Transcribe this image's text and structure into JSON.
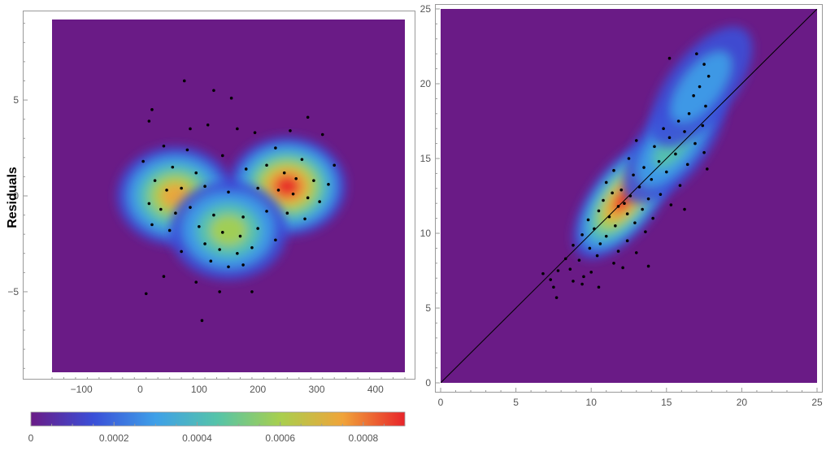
{
  "chart_data": [
    {
      "type": "scatter",
      "subtype": "density-heatmap-with-points",
      "title": "",
      "xlabel": "",
      "ylabel": "Residuals",
      "xlim": [
        -150,
        450
      ],
      "ylim": [
        -9.2,
        9.2
      ],
      "xticks": [
        -100,
        0,
        100,
        200,
        300,
        400
      ],
      "xtick_labels": [
        "−100",
        "0",
        "100",
        "200",
        "300",
        "400"
      ],
      "yticks": [
        -5,
        0,
        5
      ],
      "ytick_labels": [
        "−5",
        "0",
        "5"
      ],
      "grid": false,
      "density_clusters": [
        {
          "x": 250,
          "y": 0.5,
          "peak": 0.00088
        },
        {
          "x": 60,
          "y": 0.0,
          "peak": 0.00075
        },
        {
          "x": 150,
          "y": -1.8,
          "peak": 0.00055
        }
      ],
      "points": [
        [
          75,
          6.0
        ],
        [
          125,
          5.5
        ],
        [
          155,
          5.1
        ],
        [
          20,
          4.5
        ],
        [
          285,
          4.1
        ],
        [
          15,
          3.9
        ],
        [
          85,
          3.5
        ],
        [
          115,
          3.7
        ],
        [
          165,
          3.5
        ],
        [
          255,
          3.4
        ],
        [
          195,
          3.3
        ],
        [
          310,
          3.2
        ],
        [
          40,
          2.6
        ],
        [
          80,
          2.4
        ],
        [
          140,
          2.1
        ],
        [
          230,
          2.5
        ],
        [
          275,
          1.9
        ],
        [
          330,
          1.6
        ],
        [
          5,
          1.8
        ],
        [
          55,
          1.5
        ],
        [
          95,
          1.2
        ],
        [
          180,
          1.4
        ],
        [
          215,
          1.6
        ],
        [
          245,
          1.2
        ],
        [
          265,
          0.9
        ],
        [
          295,
          0.8
        ],
        [
          320,
          0.6
        ],
        [
          25,
          0.8
        ],
        [
          45,
          0.3
        ],
        [
          70,
          0.4
        ],
        [
          110,
          0.5
        ],
        [
          150,
          0.2
        ],
        [
          200,
          0.4
        ],
        [
          235,
          0.3
        ],
        [
          260,
          0.1
        ],
        [
          285,
          -0.1
        ],
        [
          305,
          -0.3
        ],
        [
          15,
          -0.4
        ],
        [
          35,
          -0.7
        ],
        [
          60,
          -0.9
        ],
        [
          85,
          -0.6
        ],
        [
          125,
          -1.0
        ],
        [
          175,
          -1.1
        ],
        [
          215,
          -0.8
        ],
        [
          250,
          -0.9
        ],
        [
          280,
          -1.2
        ],
        [
          20,
          -1.5
        ],
        [
          50,
          -1.8
        ],
        [
          100,
          -1.6
        ],
        [
          140,
          -1.9
        ],
        [
          170,
          -2.1
        ],
        [
          200,
          -1.7
        ],
        [
          230,
          -2.3
        ],
        [
          110,
          -2.5
        ],
        [
          135,
          -2.8
        ],
        [
          165,
          -3.0
        ],
        [
          190,
          -2.7
        ],
        [
          70,
          -2.9
        ],
        [
          120,
          -3.4
        ],
        [
          150,
          -3.7
        ],
        [
          175,
          -3.6
        ],
        [
          40,
          -4.2
        ],
        [
          95,
          -4.5
        ],
        [
          135,
          -5.0
        ],
        [
          190,
          -5.0
        ],
        [
          10,
          -5.1
        ],
        [
          105,
          -6.5
        ]
      ]
    },
    {
      "type": "scatter",
      "subtype": "density-heatmap-with-points",
      "title": "",
      "xlabel": "",
      "ylabel": "",
      "xlim": [
        0,
        25
      ],
      "ylim": [
        0,
        25
      ],
      "xticks": [
        0,
        5,
        10,
        15,
        20,
        25
      ],
      "xtick_labels": [
        "0",
        "5",
        "10",
        "15",
        "20",
        "25"
      ],
      "yticks": [
        0,
        5,
        10,
        15,
        20,
        25
      ],
      "ytick_labels": [
        "0",
        "5",
        "10",
        "15",
        "20",
        "25"
      ],
      "grid": false,
      "reference_line": {
        "from": [
          0,
          0
        ],
        "to": [
          25,
          25
        ]
      },
      "density_clusters": [
        {
          "x": 12.2,
          "y": 12.3,
          "peak": 0.0009
        },
        {
          "x": 15.5,
          "y": 16.0,
          "peak": 0.0005
        },
        {
          "x": 17.3,
          "y": 19.8,
          "peak": 0.00035
        }
      ],
      "points": [
        [
          15.2,
          21.7
        ],
        [
          17.0,
          22.0
        ],
        [
          17.5,
          21.3
        ],
        [
          17.8,
          20.5
        ],
        [
          17.2,
          19.8
        ],
        [
          16.8,
          19.2
        ],
        [
          17.6,
          18.5
        ],
        [
          16.5,
          18.0
        ],
        [
          15.8,
          17.5
        ],
        [
          17.4,
          17.2
        ],
        [
          14.8,
          17.0
        ],
        [
          16.2,
          16.8
        ],
        [
          15.2,
          16.4
        ],
        [
          13.0,
          16.2
        ],
        [
          16.9,
          16.0
        ],
        [
          14.2,
          15.8
        ],
        [
          15.6,
          15.3
        ],
        [
          17.5,
          15.4
        ],
        [
          12.5,
          15.0
        ],
        [
          14.5,
          14.8
        ],
        [
          16.4,
          14.6
        ],
        [
          13.5,
          14.4
        ],
        [
          11.5,
          14.2
        ],
        [
          15.0,
          14.1
        ],
        [
          17.7,
          14.3
        ],
        [
          12.8,
          13.9
        ],
        [
          14.0,
          13.6
        ],
        [
          11.0,
          13.4
        ],
        [
          15.9,
          13.2
        ],
        [
          13.2,
          13.1
        ],
        [
          12.0,
          12.9
        ],
        [
          11.4,
          12.7
        ],
        [
          14.6,
          12.6
        ],
        [
          12.6,
          12.5
        ],
        [
          13.8,
          12.3
        ],
        [
          10.8,
          12.2
        ],
        [
          12.2,
          12.0
        ],
        [
          11.8,
          11.8
        ],
        [
          15.3,
          11.9
        ],
        [
          13.4,
          11.6
        ],
        [
          10.5,
          11.5
        ],
        [
          12.4,
          11.3
        ],
        [
          11.2,
          11.1
        ],
        [
          14.1,
          11.0
        ],
        [
          16.2,
          11.6
        ],
        [
          9.8,
          10.9
        ],
        [
          12.9,
          10.7
        ],
        [
          11.6,
          10.5
        ],
        [
          10.2,
          10.3
        ],
        [
          13.6,
          10.1
        ],
        [
          9.4,
          9.9
        ],
        [
          11.0,
          9.8
        ],
        [
          12.4,
          9.5
        ],
        [
          10.6,
          9.3
        ],
        [
          8.8,
          9.2
        ],
        [
          9.9,
          9.0
        ],
        [
          11.8,
          8.8
        ],
        [
          13.0,
          8.7
        ],
        [
          10.4,
          8.5
        ],
        [
          8.3,
          8.3
        ],
        [
          9.2,
          8.2
        ],
        [
          11.5,
          8.0
        ],
        [
          12.1,
          7.7
        ],
        [
          13.8,
          7.8
        ],
        [
          7.8,
          7.5
        ],
        [
          8.6,
          7.6
        ],
        [
          10.0,
          7.4
        ],
        [
          6.8,
          7.3
        ],
        [
          9.5,
          7.1
        ],
        [
          7.3,
          6.9
        ],
        [
          8.8,
          6.8
        ],
        [
          10.5,
          6.4
        ],
        [
          7.5,
          6.4
        ],
        [
          9.4,
          6.6
        ],
        [
          7.7,
          5.7
        ]
      ]
    }
  ],
  "colorbar": {
    "min": 0,
    "max": 0.0009,
    "ticks": [
      0,
      0.0002,
      0.0004,
      0.0006,
      0.0008
    ],
    "tick_labels": [
      "0",
      "0.0002",
      "0.0004",
      "0.0006",
      "0.0008"
    ],
    "colors": [
      "#6a1b86",
      "#3a4fd8",
      "#3fa0e8",
      "#56c4a8",
      "#a8cf4e",
      "#f0a43a",
      "#e8242a"
    ]
  }
}
